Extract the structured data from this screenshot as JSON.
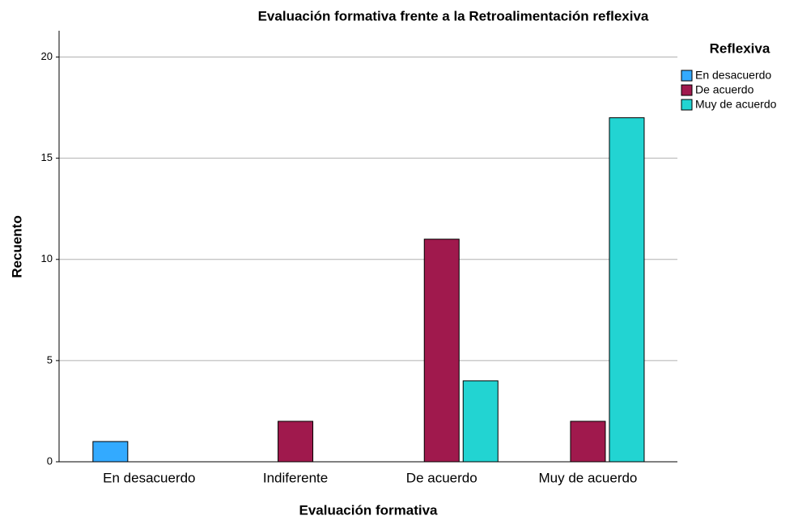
{
  "chart_data": {
    "type": "bar",
    "title": "Evaluación formativa frente a la Retroalimentación reflexiva",
    "x_label": "Evaluación formativa",
    "y_label": "Recuento",
    "legend_title": "Reflexiva",
    "legend_position": "right",
    "categories": [
      "En desacuerdo",
      "Indiferente",
      "De acuerdo",
      "Muy de acuerdo"
    ],
    "series": [
      {
        "name": "En desacuerdo",
        "color": "#33aaff",
        "values": [
          1,
          null,
          null,
          null
        ]
      },
      {
        "name": "De acuerdo",
        "color": "#a0194d",
        "values": [
          null,
          2,
          11,
          2
        ]
      },
      {
        "name": "Muy de acuerdo",
        "color": "#22d4d2",
        "values": [
          null,
          null,
          4,
          17
        ]
      }
    ],
    "ylim": [
      0,
      21.3
    ],
    "yticks": [
      0,
      5,
      10,
      15,
      20
    ],
    "grid": true
  }
}
